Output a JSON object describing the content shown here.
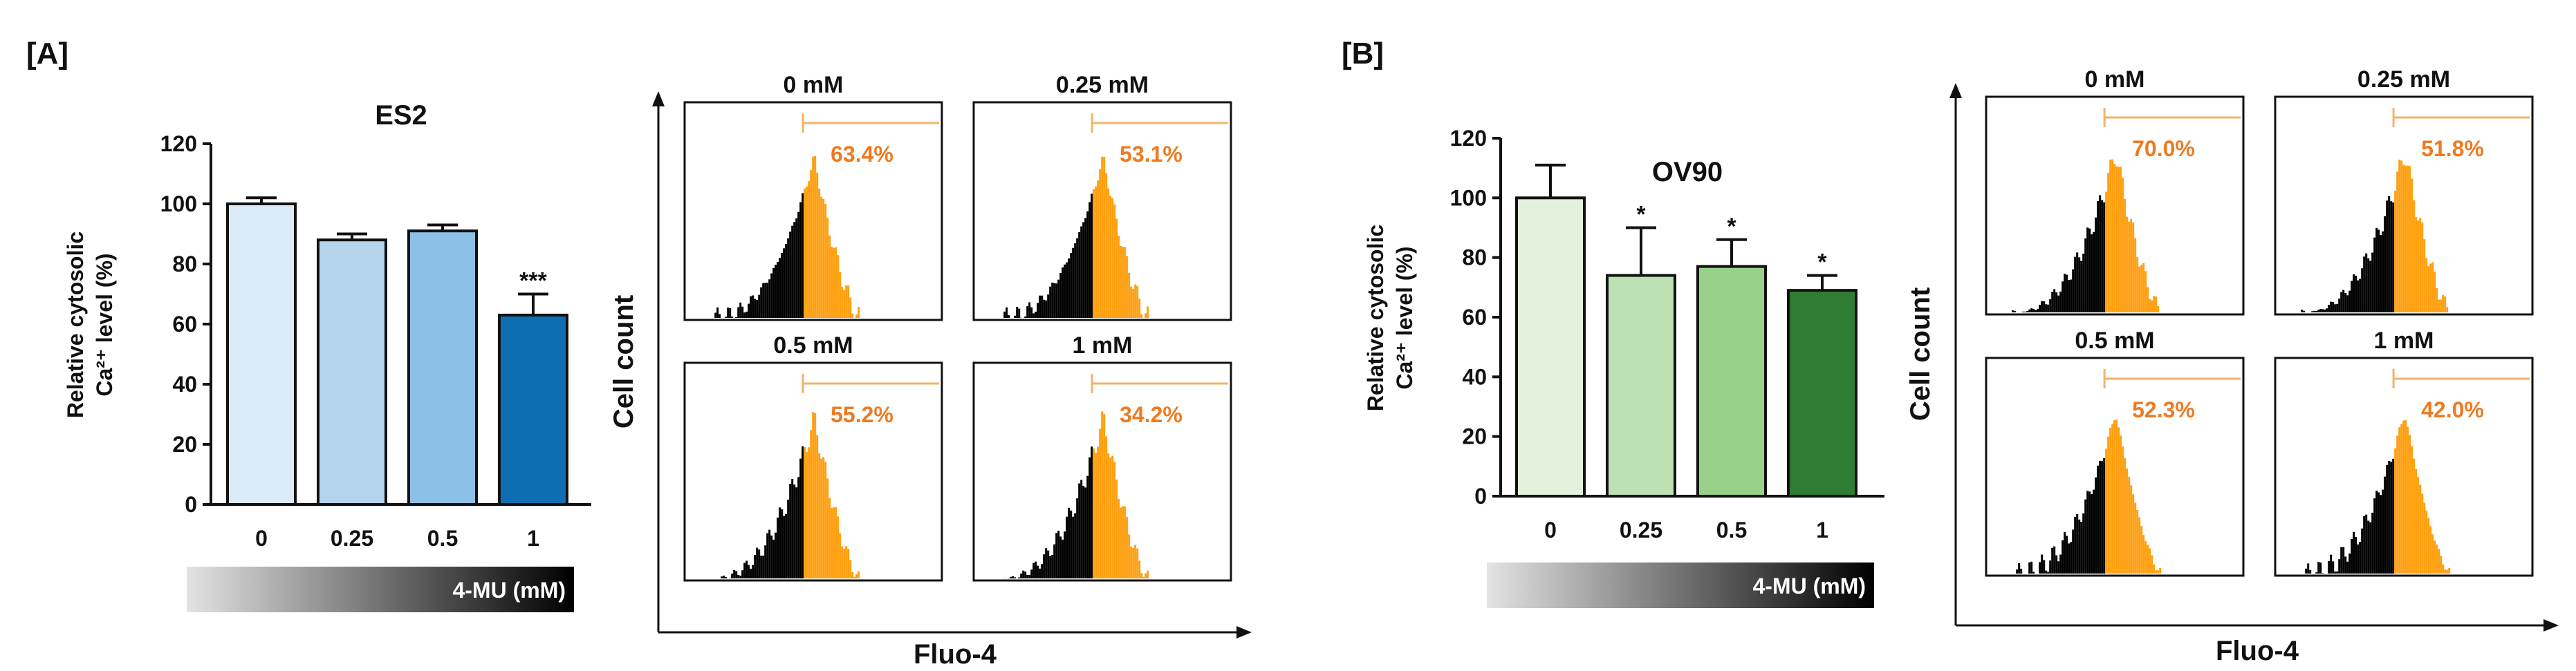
{
  "colors": {
    "es2_bars": [
      "#dbeaf7",
      "#b4d4ed",
      "#8cc0e6",
      "#0f6db2"
    ],
    "ov90_bars": [
      "#e2f1dc",
      "#bde1b2",
      "#98d28a",
      "#2e7d32"
    ],
    "hist_right": "#ffa011",
    "hist_left": "#000000",
    "gate_line": "#f2b36a",
    "gate_text": "#ee7a20",
    "gradient_start": "#e3e3e3",
    "gradient_end": "#000000"
  },
  "chart_data": [
    {
      "panel": "[A]",
      "type": "bar",
      "title": "ES2",
      "ylabel_line1": "Relative cytosolic",
      "ylabel_line2": "Ca²⁺ level (%)",
      "categories": [
        "0",
        "0.25",
        "0.5",
        "1"
      ],
      "values": [
        100,
        88,
        91,
        63
      ],
      "errors": [
        2,
        2,
        2,
        7
      ],
      "significance": [
        "",
        "",
        "",
        "***"
      ],
      "ylim": [
        0,
        120
      ],
      "yticks": [
        "0",
        "20",
        "40",
        "60",
        "80",
        "100",
        "120"
      ],
      "treatment_label": "4-MU (mM)"
    },
    {
      "panel": "[A]",
      "type": "histogram",
      "xlabel": "Fluo-4",
      "ylabel": "Cell count",
      "subplots": [
        {
          "label": "0 mM",
          "percent": "63.4%",
          "positive_fraction": 0.634
        },
        {
          "label": "0.25 mM",
          "percent": "53.1%",
          "positive_fraction": 0.531
        },
        {
          "label": "0.5 mM",
          "percent": "55.2%",
          "positive_fraction": 0.552
        },
        {
          "label": "1 mM",
          "percent": "34.2%",
          "positive_fraction": 0.342
        }
      ]
    },
    {
      "panel": "[B]",
      "type": "bar",
      "title": "OV90",
      "ylabel_line1": "Relative cytosolic",
      "ylabel_line2": "Ca²⁺ level (%)",
      "categories": [
        "0",
        "0.25",
        "0.5",
        "1"
      ],
      "values": [
        100,
        74,
        77,
        69
      ],
      "errors": [
        11,
        16,
        9,
        5
      ],
      "significance": [
        "",
        "*",
        "*",
        "*"
      ],
      "ylim": [
        0,
        120
      ],
      "yticks": [
        "0",
        "20",
        "40",
        "60",
        "80",
        "100",
        "120"
      ],
      "treatment_label": "4-MU (mM)"
    },
    {
      "panel": "[B]",
      "type": "histogram",
      "xlabel": "Fluo-4",
      "ylabel": "Cell count",
      "subplots": [
        {
          "label": "0 mM",
          "percent": "70.0%",
          "positive_fraction": 0.7
        },
        {
          "label": "0.25 mM",
          "percent": "51.8%",
          "positive_fraction": 0.518
        },
        {
          "label": "0.5 mM",
          "percent": "52.3%",
          "positive_fraction": 0.523
        },
        {
          "label": "1 mM",
          "percent": "42.0%",
          "positive_fraction": 0.42
        }
      ]
    }
  ]
}
